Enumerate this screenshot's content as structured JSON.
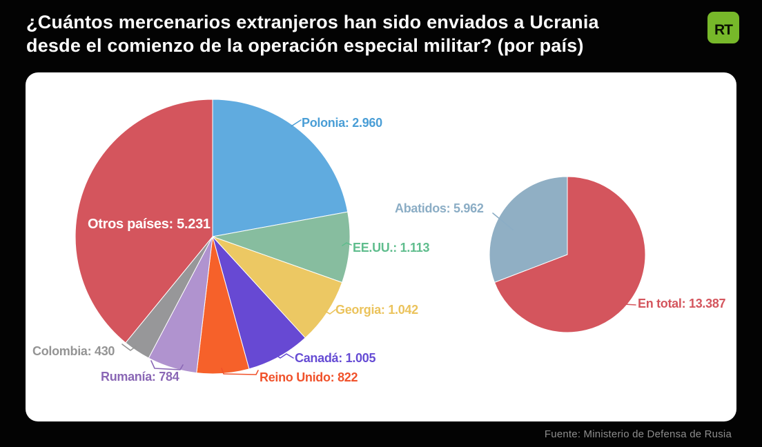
{
  "header": {
    "title_line1": "¿Cuántos mercenarios extranjeros han sido enviados a Ucrania",
    "title_line2": "desde el comienzo de la operación especial militar? (por país)",
    "logo_text": "RT"
  },
  "footer": {
    "source": "Fuente: Ministerio de Defensa de Rusia"
  },
  "colors": {
    "background": "#030303",
    "panel": "#FFFFFF",
    "title_text": "#FDFDFD",
    "footer_text": "#8D8D8D",
    "logo_background": "#77B82A",
    "logo_text": "#0A1200"
  },
  "chart_data": [
    {
      "type": "pie",
      "title": "",
      "start_angle_deg": 0,
      "direction": "clockwise",
      "total": 13387,
      "slices": [
        {
          "name": "Polonia",
          "value": 2960,
          "label": "Polonia: 2.960",
          "color": "#60ABDF",
          "label_color": "#4A9ED6"
        },
        {
          "name": "EE.UU.",
          "value": 1113,
          "label": "EE.UU.: 1.113",
          "color": "#87BD9F",
          "label_color": "#5FBD8D"
        },
        {
          "name": "Georgia",
          "value": 1042,
          "label": "Georgia: 1.042",
          "color": "#ECC863",
          "label_color": "#EBC35C"
        },
        {
          "name": "Canadá",
          "value": 1005,
          "label": "Canadá: 1.005",
          "color": "#6749D3",
          "label_color": "#654BD4"
        },
        {
          "name": "Reino Unido",
          "value": 822,
          "label": "Reino Unido: 822",
          "color": "#F6612A",
          "label_color": "#F0522B"
        },
        {
          "name": "Rumanía",
          "value": 784,
          "label": "Rumanía: 784",
          "color": "#B093CF",
          "label_color": "#8A67B5"
        },
        {
          "name": "Colombia",
          "value": 430,
          "label": "Colombia: 430",
          "color": "#979799",
          "label_color": "#949494"
        },
        {
          "name": "Otros países",
          "value": 5231,
          "label": "Otros países: 5.231",
          "color": "#D4555D",
          "label_color": "#FFFFFF",
          "label_inside": true
        }
      ]
    },
    {
      "type": "pie",
      "title": "",
      "start_angle_deg": 0,
      "direction": "clockwise",
      "total": 19349,
      "slices": [
        {
          "name": "En total",
          "value": 13387,
          "label": "En total: 13.387",
          "color": "#D4555D",
          "label_color": "#D4555D"
        },
        {
          "name": "Abatidos",
          "value": 5962,
          "label": "Abatidos: 5.962",
          "color": "#90AFC4",
          "label_color": "#8BADC5"
        }
      ]
    }
  ]
}
